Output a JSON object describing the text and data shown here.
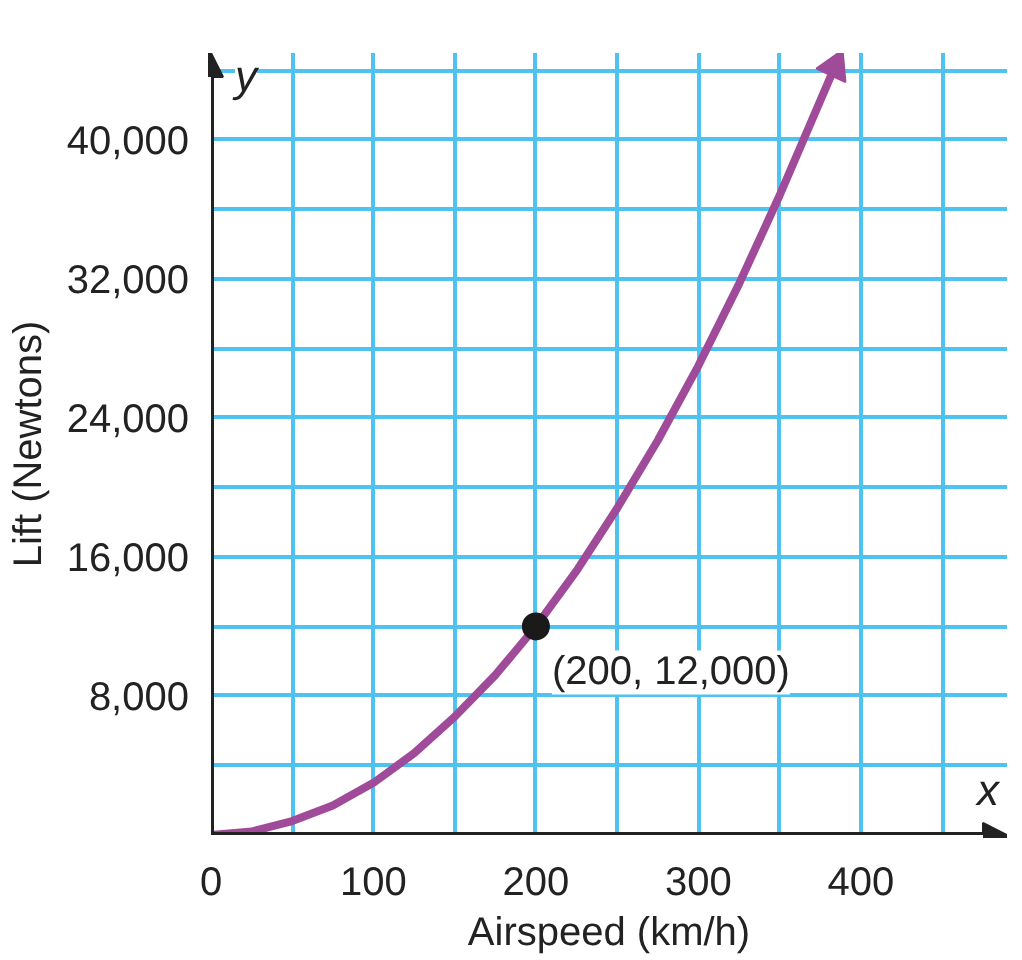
{
  "chart_data": {
    "type": "line",
    "xlabel": "Airspeed (km/h)",
    "ylabel": "Lift (Newtons)",
    "annotations": [
      {
        "text": "(200, 12,000)",
        "x": 200,
        "y": 12000
      },
      "x",
      "y"
    ],
    "xlim": [
      0,
      490
    ],
    "ylim": [
      0,
      45000
    ],
    "xticks": [
      0,
      {
        "value": 50,
        "label": null
      },
      100,
      {
        "value": 150,
        "label": null
      },
      200,
      {
        "value": 250,
        "label": null
      },
      300,
      {
        "value": 350,
        "label": null
      },
      400,
      {
        "value": 450,
        "label": null
      }
    ],
    "yticks": [
      {
        "value": 4000,
        "label": null
      },
      {
        "value": 8000,
        "label": "8,000"
      },
      {
        "value": 12000,
        "label": null
      },
      {
        "value": 16000,
        "label": "16,000"
      },
      {
        "value": 20000,
        "label": null
      },
      {
        "value": 24000,
        "label": "24,000"
      },
      {
        "value": 28000,
        "label": null
      },
      {
        "value": 32000,
        "label": "32,000"
      },
      {
        "value": 36000,
        "label": null
      },
      {
        "value": 40000,
        "label": "40,000"
      },
      {
        "value": 44000,
        "label": null
      }
    ],
    "grid": true,
    "series": [
      {
        "color": "#a04a9a",
        "x": [
          0,
          25,
          50,
          75,
          100,
          125,
          150,
          175,
          200,
          225,
          250,
          275,
          300,
          325,
          350,
          384
        ],
        "values": [
          0,
          200,
          800,
          1700,
          3000,
          4700,
          6800,
          9200,
          12000,
          15200,
          18800,
          22700,
          27000,
          31700,
          36800,
          44200
        ]
      },
      {
        "type": "scatter",
        "color": "#1a1a1a",
        "marker": "circle",
        "x": [
          200
        ],
        "values": [
          12000
        ]
      }
    ]
  }
}
